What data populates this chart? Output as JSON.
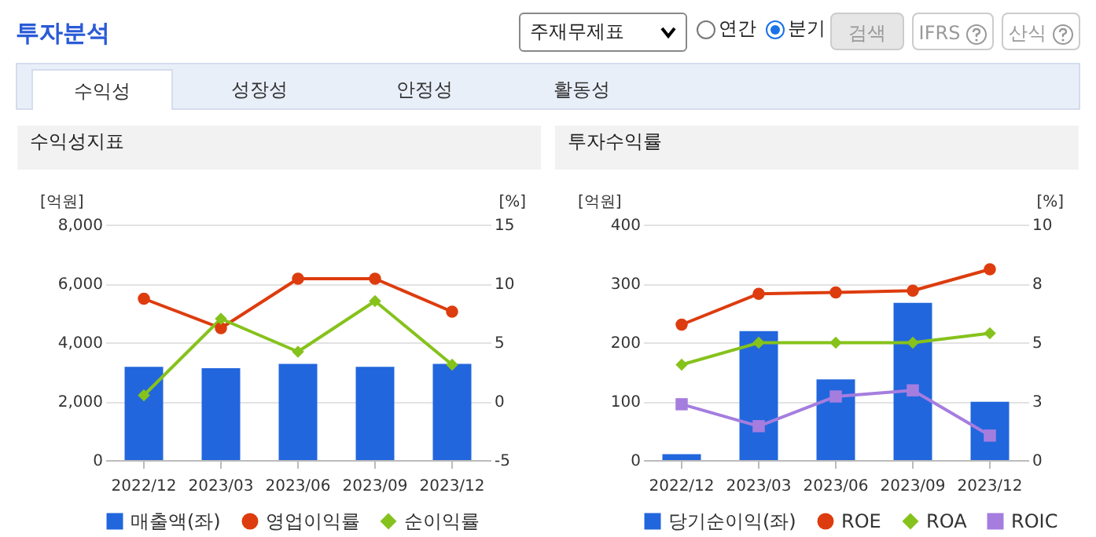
{
  "chart_data": [
    {
      "type": "bar",
      "title": "수익성지표",
      "ylabel": "[억원]",
      "y2label": "[%]",
      "annotations": [
        "투자분석",
        "주재무제표",
        "연간",
        "분기",
        "검색",
        "IFRS",
        "산식",
        "수익성",
        "성장성",
        "안정성",
        "활동성"
      ],
      "categories": [
        "2022/12",
        "2023/03",
        "2023/06",
        "2023/09",
        "2023/12"
      ],
      "series": [
        {
          "name": "매출액(좌)",
          "type": "bar",
          "color": "#2266dd",
          "values": [
            3170,
            3120,
            3270,
            3170,
            3270
          ]
        },
        {
          "name": "영업이익률",
          "type": "line",
          "axis": "y2",
          "marker": "circle",
          "color": "#dd3c0e",
          "values": [
            8.7,
            6.2,
            10.4,
            10.4,
            7.6
          ]
        },
        {
          "name": "순이익률",
          "type": "line",
          "axis": "y2",
          "marker": "diamond",
          "color": "#86c21c",
          "values": [
            0.5,
            7.0,
            4.2,
            8.5,
            3.1
          ]
        }
      ],
      "ylim": [
        0,
        8000
      ],
      "yticks": [
        0,
        {
          "value": 2000,
          "label": "2,000"
        },
        {
          "value": 4000,
          "label": "4,000"
        },
        {
          "value": 6000,
          "label": "6,000"
        },
        {
          "value": 8000,
          "label": "8,000"
        }
      ],
      "y2lim": [
        -5,
        15
      ],
      "y2ticks": [
        -5,
        0,
        5,
        10,
        15
      ],
      "grid": "y",
      "legend": "bottom"
    },
    {
      "type": "bar",
      "title": "투자수익률",
      "ylabel": "[억원]",
      "y2label": "[%]",
      "categories": [
        "2022/12",
        "2023/03",
        "2023/06",
        "2023/09",
        "2023/12"
      ],
      "series": [
        {
          "name": "당기순이익(좌)",
          "type": "bar",
          "color": "#2266dd",
          "values": [
            10,
            219,
            137,
            267,
            99
          ]
        },
        {
          "name": "ROE",
          "type": "line",
          "axis": "y2",
          "marker": "circle",
          "color": "#dd3c0e",
          "values": [
            5.75,
            7.06,
            7.12,
            7.19,
            8.1
          ]
        },
        {
          "name": "ROA",
          "type": "line",
          "axis": "y2",
          "marker": "diamond",
          "color": "#86c21c",
          "values": [
            4.05,
            4.98,
            4.98,
            4.98,
            5.38
          ]
        },
        {
          "name": "ROIC",
          "type": "line",
          "axis": "y2",
          "marker": "square",
          "color": "#a57ddf",
          "values": [
            2.37,
            1.44,
            2.7,
            2.96,
            1.04
          ]
        }
      ],
      "ylim": [
        0,
        400
      ],
      "yticks": [
        0,
        100,
        200,
        300,
        400
      ],
      "y2lim": [
        0,
        10
      ],
      "y2ticks": [
        0,
        {
          "value": 2.5,
          "label": "3"
        },
        5,
        {
          "value": 7.5,
          "label": "8"
        },
        10
      ],
      "grid": "y",
      "legend": "bottom"
    }
  ]
}
